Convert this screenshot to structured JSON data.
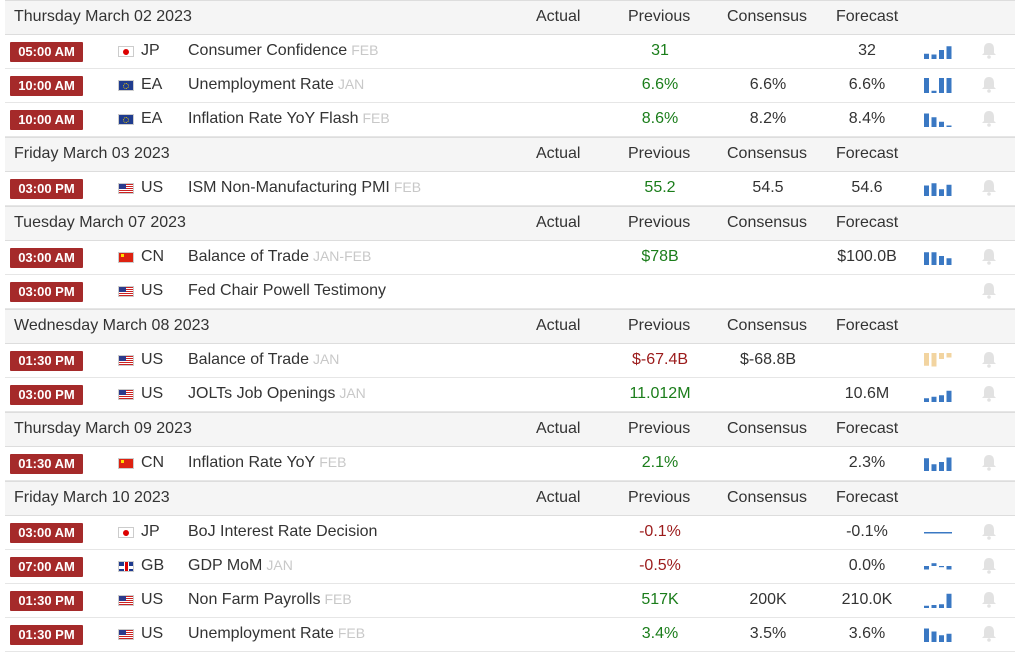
{
  "headers": {
    "actual": "Actual",
    "previous": "Previous",
    "consensus": "Consensus",
    "forecast": "Forecast"
  },
  "groups": [
    {
      "date": "Thursday March 02 2023",
      "events": [
        {
          "time": "05:00 AM",
          "flag": "jp",
          "country": "JP",
          "event": "Consumer Confidence",
          "ref": "FEB",
          "actual": "",
          "previous": "31",
          "prev_color": "green",
          "consensus": "",
          "forecast": "32",
          "spark": [
            0.35,
            0.3,
            0.6,
            0.85
          ],
          "spark_color": "#3a78c3"
        },
        {
          "time": "10:00 AM",
          "flag": "ea",
          "country": "EA",
          "event": "Unemployment Rate",
          "ref": "JAN",
          "actual": "",
          "previous": "6.6%",
          "prev_color": "green",
          "consensus": "6.6%",
          "forecast": "6.6%",
          "spark": [
            1.0,
            0.15,
            1.0,
            1.0
          ],
          "spark_color": "#3a78c3"
        },
        {
          "time": "10:00 AM",
          "flag": "ea",
          "country": "EA",
          "event": "Inflation Rate YoY Flash",
          "ref": "FEB",
          "actual": "",
          "previous": "8.6%",
          "prev_color": "green",
          "consensus": "8.2%",
          "forecast": "8.4%",
          "spark": [
            0.9,
            0.65,
            0.35,
            0.1
          ],
          "spark_color": "#3a78c3"
        }
      ]
    },
    {
      "date": "Friday March 03 2023",
      "events": [
        {
          "time": "03:00 PM",
          "flag": "us",
          "country": "US",
          "event": "ISM Non-Manufacturing PMI",
          "ref": "FEB",
          "actual": "",
          "previous": "55.2",
          "prev_color": "green",
          "consensus": "54.5",
          "forecast": "54.6",
          "spark": [
            0.7,
            0.85,
            0.45,
            0.75
          ],
          "spark_color": "#3a78c3"
        }
      ]
    },
    {
      "date": "Tuesday March 07 2023",
      "events": [
        {
          "time": "03:00 AM",
          "flag": "cn",
          "country": "CN",
          "event": "Balance of Trade",
          "ref": "JAN-FEB",
          "actual": "",
          "previous": "$78B",
          "prev_color": "green",
          "consensus": "",
          "forecast": "$100.0B",
          "spark": [
            0.85,
            0.85,
            0.6,
            0.45
          ],
          "spark_color": "#3a78c3"
        },
        {
          "time": "03:00 PM",
          "flag": "us",
          "country": "US",
          "event": "Fed Chair Powell Testimony",
          "ref": "",
          "actual": "",
          "previous": "",
          "prev_color": "green",
          "consensus": "",
          "forecast": "",
          "spark": [],
          "spark_color": "#3a78c3"
        }
      ]
    },
    {
      "date": "Wednesday March 08 2023",
      "events": [
        {
          "time": "01:30 PM",
          "flag": "us",
          "country": "US",
          "event": "Balance of Trade",
          "ref": "JAN",
          "actual": "",
          "previous": "$-67.4B",
          "prev_color": "red",
          "consensus": "$-68.8B",
          "forecast": "",
          "spark": [
            -0.85,
            -0.9,
            -0.4,
            -0.3
          ],
          "spark_color": "#f2d4a0"
        },
        {
          "time": "03:00 PM",
          "flag": "us",
          "country": "US",
          "event": "JOLTs Job Openings",
          "ref": "JAN",
          "actual": "",
          "previous": "11.012M",
          "prev_color": "green",
          "consensus": "",
          "forecast": "10.6M",
          "spark": [
            0.25,
            0.35,
            0.45,
            0.75
          ],
          "spark_color": "#3a78c3"
        }
      ]
    },
    {
      "date": "Thursday March 09 2023",
      "events": [
        {
          "time": "01:30 AM",
          "flag": "cn",
          "country": "CN",
          "event": "Inflation Rate YoY",
          "ref": "FEB",
          "actual": "",
          "previous": "2.1%",
          "prev_color": "green",
          "consensus": "",
          "forecast": "2.3%",
          "spark": [
            0.85,
            0.45,
            0.6,
            0.9
          ],
          "spark_color": "#3a78c3"
        }
      ]
    },
    {
      "date": "Friday March 10 2023",
      "events": [
        {
          "time": "03:00 AM",
          "flag": "jp",
          "country": "JP",
          "event": "BoJ Interest Rate Decision",
          "ref": "",
          "actual": "",
          "previous": "-0.1%",
          "prev_color": "red",
          "consensus": "",
          "forecast": "-0.1%",
          "spark": [
            -0.1,
            -0.1,
            -0.1,
            -0.1
          ],
          "spark_color": "#3a78c3"
        },
        {
          "time": "07:00 AM",
          "flag": "gb",
          "country": "GB",
          "event": "GDP MoM",
          "ref": "JAN",
          "actual": "",
          "previous": "-0.5%",
          "prev_color": "red",
          "consensus": "",
          "forecast": "0.0%",
          "spark": [
            -0.5,
            0.4,
            -0.1,
            -0.5
          ],
          "spark_color": "#3a78c3"
        },
        {
          "time": "01:30 PM",
          "flag": "us",
          "country": "US",
          "event": "Non Farm Payrolls",
          "ref": "FEB",
          "actual": "",
          "previous": "517K",
          "prev_color": "green",
          "consensus": "200K",
          "forecast": "210.0K",
          "spark": [
            0.15,
            0.2,
            0.25,
            0.95
          ],
          "spark_color": "#3a78c3"
        },
        {
          "time": "01:30 PM",
          "flag": "us",
          "country": "US",
          "event": "Unemployment Rate",
          "ref": "FEB",
          "actual": "",
          "previous": "3.4%",
          "prev_color": "green",
          "consensus": "3.5%",
          "forecast": "3.6%",
          "spark": [
            0.9,
            0.7,
            0.45,
            0.55
          ],
          "spark_color": "#3a78c3"
        }
      ]
    }
  ]
}
